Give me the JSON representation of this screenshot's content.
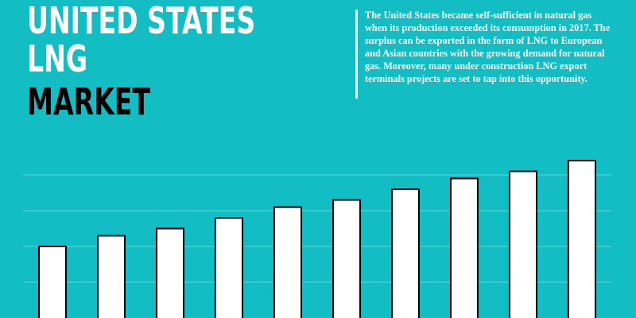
{
  "chart_data": {
    "type": "bar",
    "title": [
      "UNITED STATES",
      "LNG",
      "MARKET"
    ],
    "description": "The United States became self-sufficient in natural gas when its production exceeded its consumption in 2017. The surplus can be exported in the form of LNG to European and Asian countries with the growing demand for natural gas. Moreover, many under construction LNG export terminals projects are set to tap into this opportunity.",
    "categories": [
      null,
      null,
      null,
      null,
      null,
      null,
      null,
      null,
      null,
      null
    ],
    "values": [
      2.0,
      2.3,
      2.5,
      2.8,
      3.1,
      3.3,
      3.6,
      3.9,
      4.1,
      4.4
    ],
    "color": "#ffffff",
    "ylim": [
      0,
      5
    ],
    "yticks": [
      1,
      2,
      3,
      4
    ],
    "grid": true
  }
}
